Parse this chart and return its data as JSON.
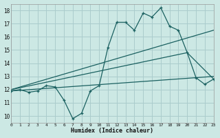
{
  "xlabel": "Humidex (Indice chaleur)",
  "xlim": [
    0,
    23
  ],
  "ylim": [
    9.5,
    18.5
  ],
  "yticks": [
    10,
    11,
    12,
    13,
    14,
    15,
    16,
    17,
    18
  ],
  "xticks": [
    0,
    1,
    2,
    3,
    4,
    5,
    6,
    7,
    8,
    9,
    10,
    11,
    12,
    13,
    14,
    15,
    16,
    17,
    18,
    19,
    20,
    21,
    22,
    23
  ],
  "bg_color": "#cce8e4",
  "grid_color": "#aacccc",
  "line_color": "#1a6060",
  "curve_main_x": [
    0,
    1,
    2,
    3,
    4,
    5,
    6,
    7,
    8,
    9,
    10,
    11,
    12,
    13,
    14,
    15,
    16,
    17,
    18,
    19,
    20,
    21,
    22,
    23
  ],
  "curve_main_y": [
    11.9,
    12.0,
    11.8,
    11.9,
    12.3,
    12.2,
    11.2,
    9.8,
    10.2,
    11.9,
    12.3,
    15.2,
    17.1,
    17.1,
    16.5,
    17.8,
    17.5,
    18.2,
    16.8,
    16.5,
    14.8,
    12.9,
    12.4,
    12.8
  ],
  "trend1_x": [
    0,
    23
  ],
  "trend1_y": [
    12.0,
    16.5
  ],
  "trend2_x": [
    0,
    20,
    23
  ],
  "trend2_y": [
    12.0,
    14.8,
    12.8
  ],
  "trend3_x": [
    0,
    23
  ],
  "trend3_y": [
    11.9,
    13.0
  ]
}
